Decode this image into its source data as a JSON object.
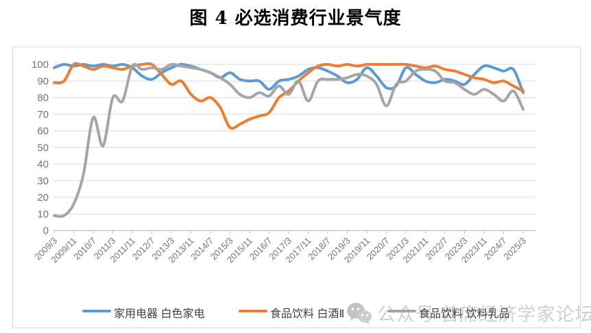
{
  "title": "图 4 必选消费行业景气度",
  "watermark": {
    "icon": "wechat-icon",
    "text": "公众号 首席经济学家论坛"
  },
  "colors": {
    "series_blue": "#5B9BD5",
    "series_orange": "#ED7D31",
    "series_gray": "#A5A5A5",
    "gridline": "#D9D9D9",
    "axis_line": "#BFBFBF",
    "axis_text": "#737373",
    "legend_text": "#404040",
    "frame_border": "#D9D9D9",
    "watermark": "#D0D0D0",
    "title_text": "#000000"
  },
  "chart_data": {
    "type": "line",
    "title": "图 4 必选消费行业景气度",
    "xlabel": "",
    "ylabel": "",
    "ylim": [
      0,
      100
    ],
    "ytick_step": 10,
    "yticks": [
      0,
      10,
      20,
      30,
      40,
      50,
      60,
      70,
      80,
      90,
      100
    ],
    "grid": true,
    "legend_position": "bottom",
    "line_style": "smooth",
    "categories": [
      "2009/3",
      "2009/7",
      "2009/11",
      "2010/3",
      "2010/7",
      "2010/11",
      "2011/3",
      "2011/7",
      "2011/11",
      "2012/3",
      "2012/7",
      "2012/11",
      "2013/3",
      "2013/7",
      "2013/11",
      "2014/3",
      "2014/7",
      "2014/11",
      "2015/3",
      "2015/7",
      "2015/11",
      "2016/3",
      "2016/7",
      "2016/11",
      "2017/3",
      "2017/7",
      "2017/11",
      "2018/3",
      "2018/7",
      "2018/11",
      "2019/3",
      "2019/7",
      "2019/11",
      "2020/3",
      "2020/7",
      "2020/11",
      "2021/3",
      "2021/7",
      "2021/11",
      "2022/3",
      "2022/7",
      "2022/11",
      "2023/3",
      "2023/7",
      "2023/11",
      "2024/3",
      "2024/7",
      "2024/11",
      "2025/3"
    ],
    "x_tick_labels": [
      "2009/3",
      "2009/11",
      "2010/7",
      "2011/3",
      "2011/11",
      "2012/7",
      "2013/3",
      "2013/11",
      "2014/7",
      "2015/3",
      "2015/11",
      "2016/7",
      "2017/3",
      "2017/11",
      "2018/7",
      "2019/3",
      "2019/11",
      "2020/7",
      "2021/3",
      "2021/11",
      "2022/7",
      "2023/3",
      "2023/11",
      "2024/7",
      "2025/3"
    ],
    "series": [
      {
        "name": "家用电器 白色家电",
        "color": "#5B9BD5",
        "values": [
          98,
          100,
          99,
          100,
          99,
          100,
          99,
          100,
          98,
          93,
          91,
          95,
          98,
          100,
          99,
          97,
          95,
          92,
          95,
          91,
          90,
          90,
          85,
          90,
          91,
          93,
          97,
          98,
          96,
          93,
          89,
          91,
          98,
          93,
          86,
          87,
          98,
          94,
          90,
          89,
          91,
          90,
          88,
          94,
          99,
          98,
          96,
          97,
          83
        ]
      },
      {
        "name": "食品饮料 白酒Ⅱ",
        "color": "#ED7D31",
        "values": [
          89,
          90,
          100,
          99,
          97,
          99,
          98,
          97,
          99,
          100,
          100,
          94,
          88,
          90,
          82,
          78,
          80,
          74,
          62,
          64,
          67,
          69,
          71,
          80,
          84,
          90,
          95,
          99,
          100,
          99,
          100,
          99,
          100,
          100,
          100,
          100,
          100,
          99,
          98,
          99,
          97,
          96,
          94,
          92,
          91,
          89,
          90,
          87,
          84
        ]
      },
      {
        "name": "食品饮料 饮料乳品",
        "color": "#A5A5A5",
        "values": [
          9,
          9,
          16,
          34,
          68,
          51,
          80,
          78,
          99,
          97,
          98,
          97,
          100,
          99,
          98,
          97,
          95,
          92,
          88,
          82,
          80,
          83,
          81,
          87,
          82,
          90,
          78,
          90,
          91,
          91,
          92,
          94,
          93,
          88,
          75,
          88,
          90,
          96,
          97,
          96,
          90,
          89,
          85,
          82,
          85,
          82,
          78,
          84,
          73
        ]
      }
    ]
  }
}
